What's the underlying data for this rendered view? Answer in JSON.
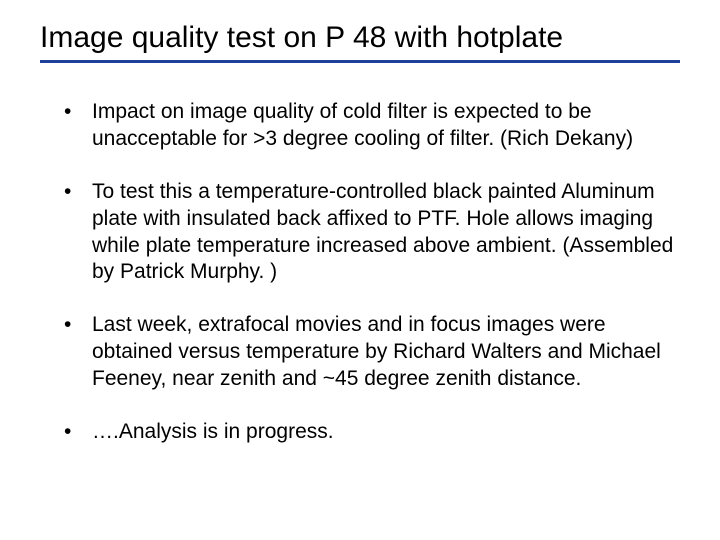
{
  "slide": {
    "title": "Image quality test on P 48 with hotplate",
    "title_fontsize": 30,
    "title_color": "#000000",
    "underline_color": "#1f3f9a",
    "underline_height": 3,
    "background_color": "#ffffff",
    "body_fontsize": 21,
    "body_color": "#000000",
    "bullet_char": "•",
    "bullets": [
      {
        "text": "Impact on image quality of cold filter is expected to be unacceptable for >3 degree cooling of filter.  (Rich Dekany)"
      },
      {
        "text": "To test this a temperature-controlled black painted Aluminum plate with insulated back affixed to PTF.  Hole allows imaging while plate temperature increased above ambient. (Assembled by Patrick Murphy. )"
      },
      {
        "text": "Last week, extrafocal movies and in focus images were obtained versus temperature by Richard Walters and Michael Feeney, near zenith and ~45 degree zenith distance."
      },
      {
        "text": "….Analysis is in progress."
      }
    ]
  }
}
